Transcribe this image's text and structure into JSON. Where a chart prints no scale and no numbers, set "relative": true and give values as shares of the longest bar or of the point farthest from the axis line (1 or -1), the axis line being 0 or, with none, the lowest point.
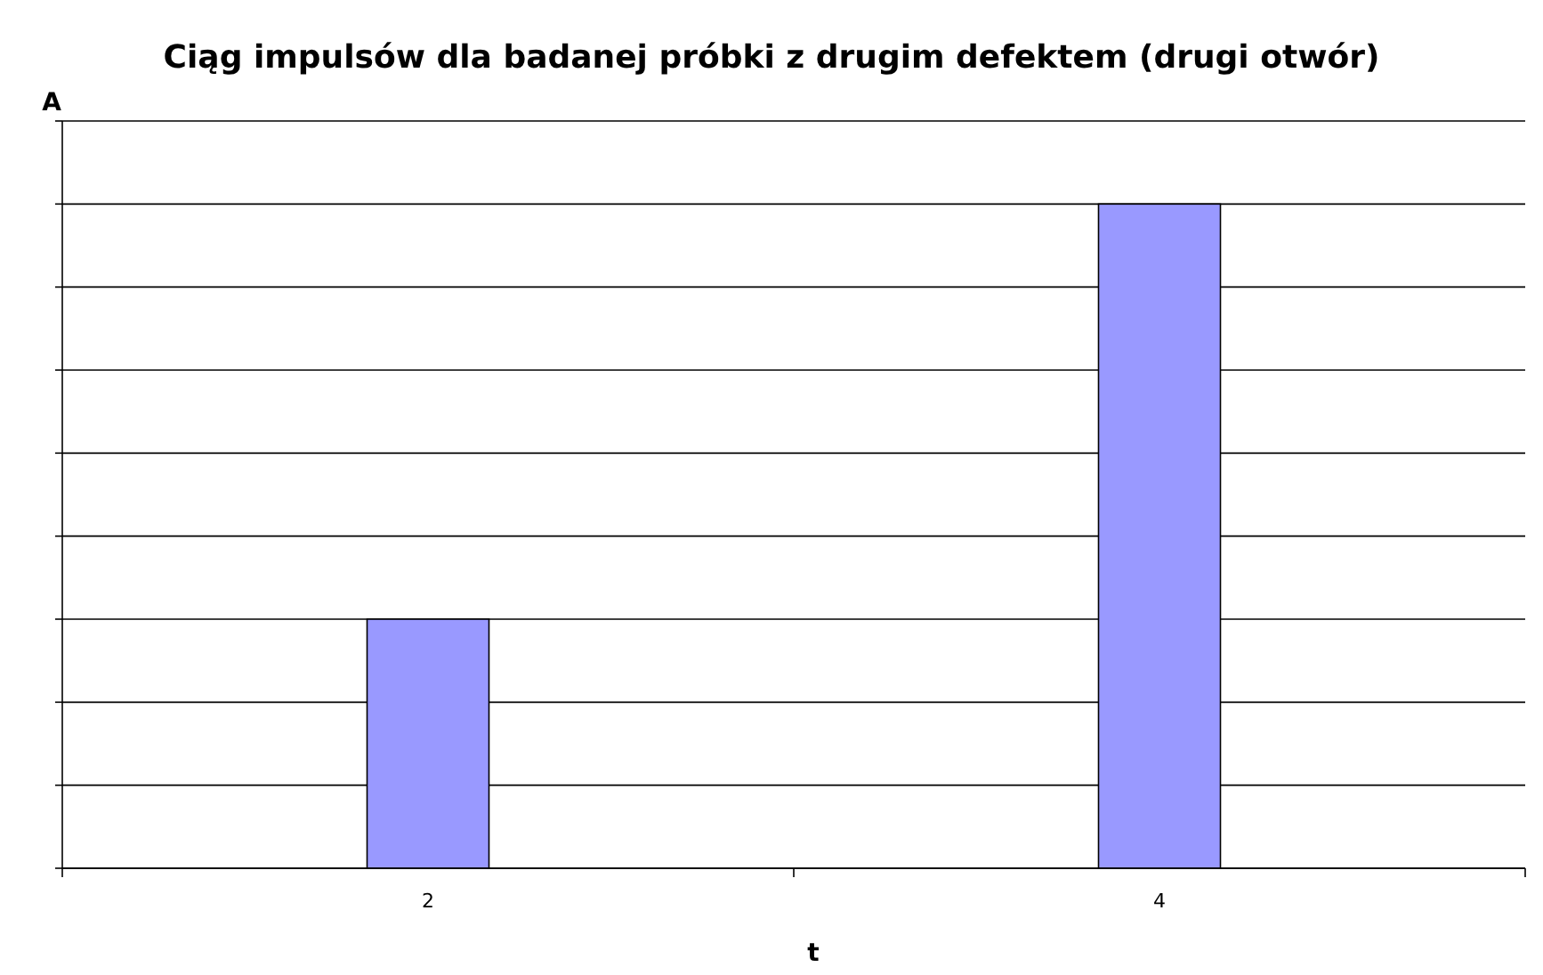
{
  "chart_data": {
    "type": "bar",
    "title": "Ciąg impulsów dla badanej próbki z drugim defektem (drugi otwór)",
    "xlabel": "t",
    "ylabel": "A",
    "categories": [
      "2",
      "4"
    ],
    "values": [
      0.375,
      1
    ],
    "color": "#9999ff",
    "relative": true,
    "grid": "y"
  }
}
